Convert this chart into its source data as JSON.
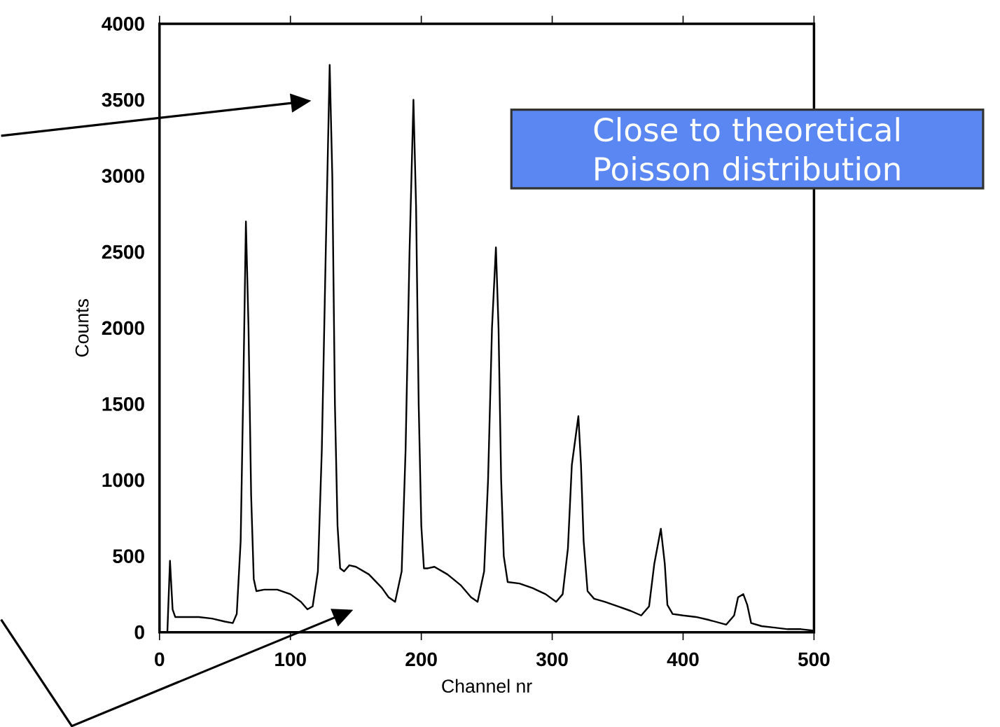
{
  "chart_data": {
    "type": "line",
    "xlabel": "Channel nr",
    "ylabel": "Counts",
    "color": "#000000",
    "marker": "none",
    "line_style": "solid",
    "grid": false,
    "xlim": [
      0,
      500
    ],
    "ylim": [
      0,
      4000
    ],
    "xticks": [
      0,
      100,
      200,
      300,
      400,
      500
    ],
    "yticks": [
      0,
      500,
      1000,
      1500,
      2000,
      2500,
      3000,
      3500,
      4000
    ],
    "annotations": [
      "Close to theoretical Poisson distribution"
    ],
    "x": [
      6,
      8,
      10,
      12,
      20,
      30,
      40,
      50,
      56,
      59,
      62,
      64,
      66,
      68,
      70,
      72,
      74,
      80,
      90,
      100,
      108,
      113,
      117,
      121,
      124,
      127,
      130,
      132,
      134,
      136,
      138,
      141,
      145,
      150,
      160,
      170,
      175,
      180,
      185,
      188,
      191,
      194,
      196,
      198,
      200,
      202,
      205,
      210,
      220,
      230,
      238,
      243,
      248,
      251,
      254,
      257,
      259,
      261,
      263,
      266,
      275,
      285,
      295,
      303,
      308,
      312,
      315,
      320,
      322,
      324,
      327,
      332,
      340,
      350,
      360,
      368,
      374,
      378,
      383,
      386,
      388,
      392,
      400,
      410,
      420,
      433,
      439,
      442,
      446,
      449,
      452,
      460,
      470,
      480,
      490,
      500
    ],
    "values": [
      0,
      470,
      150,
      100,
      100,
      100,
      90,
      70,
      60,
      120,
      600,
      1600,
      2700,
      2000,
      900,
      350,
      270,
      280,
      280,
      250,
      200,
      150,
      170,
      400,
      1200,
      2500,
      3730,
      3000,
      1500,
      700,
      420,
      400,
      440,
      430,
      380,
      290,
      230,
      200,
      400,
      1200,
      2500,
      3500,
      2800,
      1500,
      700,
      420,
      420,
      430,
      380,
      310,
      230,
      200,
      400,
      1000,
      2000,
      2530,
      2000,
      1000,
      500,
      330,
      320,
      290,
      250,
      200,
      250,
      550,
      1100,
      1420,
      1100,
      600,
      270,
      220,
      200,
      170,
      140,
      110,
      170,
      450,
      680,
      450,
      180,
      120,
      110,
      100,
      80,
      50,
      110,
      230,
      250,
      180,
      60,
      40,
      30,
      20,
      20,
      10
    ]
  }
}
